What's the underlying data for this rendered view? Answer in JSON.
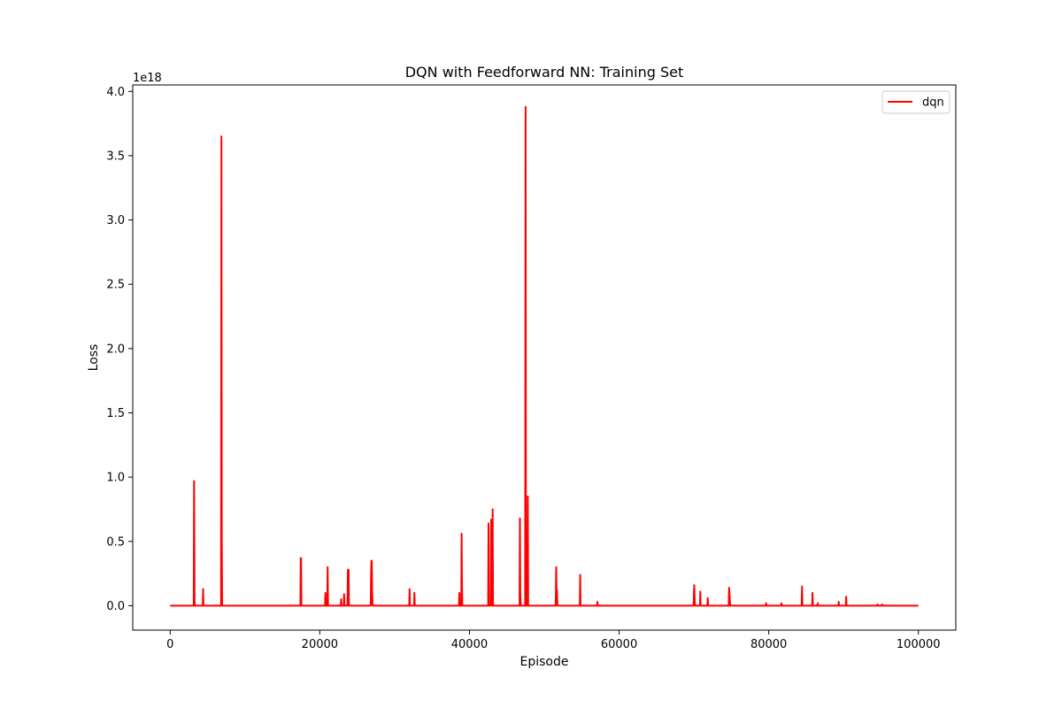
{
  "chart_data": {
    "type": "line",
    "title": "DQN with Feedforward NN: Training Set",
    "xlabel": "Episode",
    "ylabel": "Loss",
    "xlim": [
      -5000,
      105000
    ],
    "ylim": [
      -0.19,
      4.05
    ],
    "y_offset_text": "1e18",
    "y_scale_multiplier": 1e+18,
    "xticks": [
      0,
      20000,
      40000,
      60000,
      80000,
      100000
    ],
    "xtick_labels": [
      "0",
      "20000",
      "40000",
      "60000",
      "80000",
      "100000"
    ],
    "yticks": [
      0.0,
      0.5,
      1.0,
      1.5,
      2.0,
      2.5,
      3.0,
      3.5,
      4.0
    ],
    "ytick_labels": [
      "0.0",
      "0.5",
      "1.0",
      "1.5",
      "2.0",
      "2.5",
      "3.0",
      "3.5",
      "4.0"
    ],
    "grid": false,
    "legend_position": "top-right",
    "series": [
      {
        "name": "dqn",
        "color": "#ff0000",
        "x": [
          0,
          3150,
          3200,
          3250,
          3300,
          4350,
          4400,
          4450,
          6800,
          6850,
          6900,
          6950,
          17400,
          17450,
          17500,
          17550,
          20700,
          20750,
          20800,
          21000,
          21050,
          21100,
          22800,
          22850,
          22900,
          23200,
          23250,
          23300,
          23700,
          23750,
          23800,
          23850,
          23900,
          26800,
          26850,
          26900,
          26950,
          27000,
          27050,
          31950,
          32000,
          32050,
          32600,
          32650,
          32700,
          38600,
          38650,
          38700,
          38900,
          38950,
          39000,
          39050,
          42500,
          42550,
          42600,
          42850,
          42900,
          42950,
          43050,
          43100,
          43150,
          46700,
          46750,
          46800,
          46850,
          47450,
          47500,
          47550,
          47750,
          47800,
          47850,
          51500,
          51550,
          51600,
          51650,
          51700,
          51750,
          54750,
          54800,
          54850,
          57050,
          57100,
          57150,
          69950,
          70000,
          70050,
          70100,
          70150,
          70800,
          70850,
          70900,
          71800,
          71850,
          71900,
          74650,
          74700,
          74750,
          74800,
          74850,
          79600,
          79650,
          79700,
          81650,
          81700,
          81750,
          84400,
          84450,
          84500,
          85800,
          85850,
          85900,
          86500,
          86550,
          86600,
          89300,
          89350,
          89400,
          90300,
          90350,
          90400,
          94500,
          94550,
          94600,
          95100,
          95150,
          95200,
          100000
        ],
        "values": [
          0,
          0,
          0.97,
          0.05,
          0,
          0,
          0.13,
          0,
          0,
          3.65,
          0.5,
          0,
          0,
          0.37,
          0.37,
          0,
          0,
          0.1,
          0,
          0,
          0.3,
          0,
          0,
          0.05,
          0,
          0,
          0.09,
          0,
          0,
          0.28,
          0.05,
          0.28,
          0,
          0,
          0.24,
          0.35,
          0.35,
          0.1,
          0,
          0,
          0.13,
          0,
          0,
          0.1,
          0,
          0,
          0.1,
          0,
          0,
          0.56,
          0.18,
          0,
          0,
          0.64,
          0,
          0,
          0.67,
          0.25,
          0,
          0.75,
          0,
          0,
          0.68,
          0.1,
          0,
          0,
          3.88,
          0,
          0,
          0.85,
          0,
          0,
          0.07,
          0.3,
          0.05,
          0.12,
          0,
          0,
          0.24,
          0,
          0,
          0.03,
          0,
          0,
          0.1,
          0.16,
          0.05,
          0,
          0,
          0.11,
          0,
          0,
          0.06,
          0,
          0,
          0.14,
          0.1,
          0.04,
          0,
          0,
          0.02,
          0,
          0,
          0.02,
          0,
          0,
          0.15,
          0,
          0,
          0.1,
          0,
          0,
          0.02,
          0,
          0,
          0.03,
          0,
          0,
          0.07,
          0,
          0,
          0.01,
          0,
          0,
          0.01,
          0,
          0
        ]
      }
    ]
  }
}
